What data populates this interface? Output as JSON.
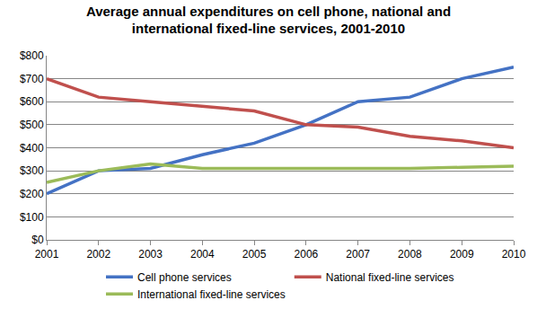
{
  "chart_data": {
    "type": "line",
    "title": "Average annual expenditures on cell phone, national and\ninternational fixed-line services, 2001-2010",
    "categories": [
      "2001",
      "2002",
      "2003",
      "2004",
      "2005",
      "2006",
      "2007",
      "2008",
      "2009",
      "2010"
    ],
    "series": [
      {
        "name": "Cell phone services",
        "color": "#4472c4",
        "values": [
          200,
          300,
          310,
          370,
          420,
          500,
          600,
          620,
          700,
          750
        ]
      },
      {
        "name": "National fixed-line services",
        "color": "#c0504d",
        "values": [
          700,
          620,
          600,
          580,
          560,
          500,
          490,
          450,
          430,
          400
        ]
      },
      {
        "name": "International fixed-line services",
        "color": "#9bbb59",
        "values": [
          250,
          300,
          330,
          310,
          310,
          310,
          310,
          310,
          315,
          320
        ]
      }
    ],
    "ylim": [
      0,
      800
    ],
    "yticks": [
      {
        "value": 0,
        "label": "$0"
      },
      {
        "value": 100,
        "label": "$100"
      },
      {
        "value": 200,
        "label": "$200"
      },
      {
        "value": 300,
        "label": "$300"
      },
      {
        "value": 400,
        "label": "$400"
      },
      {
        "value": 500,
        "label": "$500"
      },
      {
        "value": 600,
        "label": "$600"
      },
      {
        "value": 700,
        "label": "$700"
      },
      {
        "value": 800,
        "label": "$800"
      }
    ],
    "grid": true,
    "legend": "bottom"
  }
}
